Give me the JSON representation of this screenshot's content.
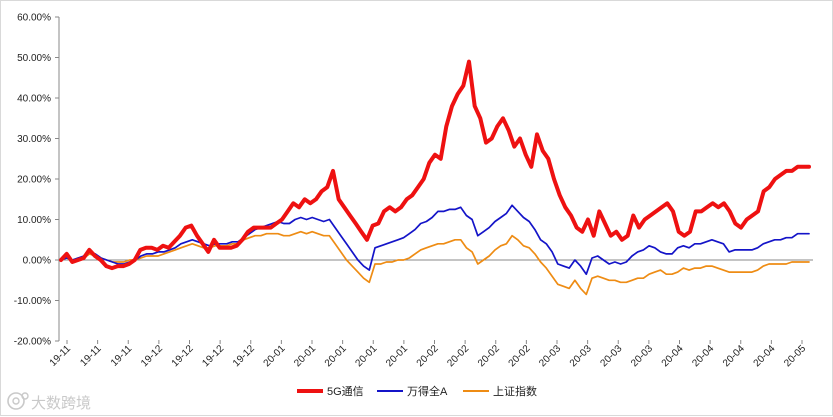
{
  "chart_data": {
    "type": "line",
    "title": "",
    "xlabel": "",
    "ylabel": "",
    "ylim": [
      -20,
      60
    ],
    "y_ticks": [
      "60.00%",
      "50.00%",
      "40.00%",
      "30.00%",
      "20.00%",
      "10.00%",
      "0.00%",
      "-10.00%",
      "-20.00%"
    ],
    "y_tick_values": [
      60,
      50,
      40,
      30,
      20,
      10,
      0,
      -10,
      -20
    ],
    "x_tick_labels": [
      "19-11",
      "19-11",
      "19-11",
      "19-12",
      "19-12",
      "19-12",
      "19-12",
      "20-01",
      "20-01",
      "20-01",
      "20-01",
      "20-01",
      "20-02",
      "20-02",
      "20-02",
      "20-02",
      "20-03",
      "20-03",
      "20-03",
      "20-03",
      "20-04",
      "20-04",
      "20-04",
      "20-04",
      "20-05"
    ],
    "grid": false,
    "legend_position": "bottom",
    "series": [
      {
        "name": "5G通信",
        "color": "#ee1111",
        "values": [
          0,
          1.5,
          -0.5,
          0,
          0.5,
          2.5,
          1,
          0,
          -1.5,
          -2,
          -1.5,
          -1.5,
          -1,
          0,
          2.5,
          3,
          3,
          2.5,
          3.5,
          3,
          4.5,
          6,
          8,
          8.5,
          6,
          4,
          2,
          5,
          3,
          3,
          3,
          3.5,
          5,
          7,
          8,
          8,
          8,
          8,
          9,
          10,
          12,
          14,
          13,
          15,
          14,
          15,
          17,
          18,
          22,
          15,
          13,
          11,
          9,
          7,
          5,
          8.5,
          9,
          12,
          13,
          12,
          13,
          15,
          16,
          18,
          20,
          24,
          26,
          25,
          33,
          38,
          41,
          43,
          49,
          38,
          35,
          29,
          30,
          33,
          35,
          32,
          28,
          30,
          26,
          23,
          31,
          27,
          25,
          20,
          16,
          13,
          11,
          8,
          7,
          10,
          6,
          12,
          9,
          6,
          7,
          5,
          6,
          11,
          8,
          10,
          11,
          12,
          13,
          14,
          12,
          7,
          6,
          7,
          12,
          12,
          13,
          14,
          13,
          14,
          12,
          9,
          8,
          10,
          11,
          12,
          17,
          18,
          20,
          21,
          22,
          22,
          23,
          23,
          23
        ]
      },
      {
        "name": "万得全A",
        "color": "#1414c8",
        "values": [
          0,
          0.5,
          0,
          0.5,
          1,
          2,
          1.5,
          0.5,
          0,
          -0.5,
          -1,
          -1,
          -0.5,
          0,
          1,
          1.5,
          1.5,
          2,
          2,
          2.5,
          3,
          4,
          4.5,
          5,
          4.5,
          4,
          3.5,
          4,
          4,
          4,
          4.5,
          4.5,
          5.5,
          6.5,
          7.5,
          8,
          8.5,
          9,
          9.5,
          9,
          9,
          10,
          10.5,
          10,
          10.5,
          10,
          9.5,
          10,
          8,
          6,
          4,
          2,
          0,
          -1.5,
          -2.5,
          3,
          3.5,
          4,
          4.5,
          5,
          5.5,
          6.5,
          7.5,
          9,
          9.5,
          10.5,
          12,
          12,
          12.5,
          12.5,
          13,
          11,
          10,
          6,
          7,
          8,
          9.5,
          10.5,
          11.5,
          13.5,
          12,
          10.5,
          9.5,
          7.5,
          5,
          4,
          2,
          -1,
          -1.5,
          -2,
          0,
          -1.5,
          -3.5,
          0.5,
          1,
          0,
          -1,
          -0.5,
          -1,
          -0.5,
          1,
          2,
          2.5,
          3.5,
          3,
          2,
          1.5,
          1.5,
          3,
          3.5,
          3,
          4,
          4,
          4.5,
          5,
          4.5,
          4,
          2,
          2.5,
          2.5,
          2.5,
          2.5,
          3,
          4,
          4.5,
          5,
          5,
          5.5,
          5.5,
          6.5,
          6.5,
          6.5
        ]
      },
      {
        "name": "上证指数",
        "color": "#ee8c14",
        "values": [
          0,
          0.5,
          0,
          0.5,
          0.5,
          1.5,
          1,
          0.5,
          0,
          -0.5,
          -0.5,
          -0.5,
          0,
          0,
          0.5,
          1,
          1,
          1,
          1.5,
          2,
          2.5,
          3,
          3.5,
          4,
          3.5,
          3,
          3,
          3.5,
          3.5,
          3.5,
          4,
          4,
          5,
          5.5,
          6,
          6,
          6.5,
          6.5,
          6.5,
          6,
          6,
          6.5,
          7,
          6.5,
          7,
          6.5,
          6,
          6,
          4,
          2,
          0,
          -1.5,
          -3,
          -4.5,
          -5.5,
          -1,
          -1,
          -0.5,
          -0.5,
          0,
          0,
          0.5,
          1.5,
          2.5,
          3,
          3.5,
          4,
          4,
          4.5,
          5,
          5,
          3,
          2,
          -1,
          0,
          1,
          2.5,
          3.5,
          4,
          6,
          5,
          3.5,
          3,
          1.5,
          -0.5,
          -2,
          -4,
          -6,
          -6.5,
          -7,
          -5,
          -7,
          -8.5,
          -4.5,
          -4,
          -4.5,
          -5,
          -5,
          -5.5,
          -5.5,
          -5,
          -4.5,
          -4.5,
          -3.5,
          -3,
          -2.5,
          -3.5,
          -3.5,
          -3,
          -2,
          -2.5,
          -2,
          -2,
          -1.5,
          -1.5,
          -2,
          -2.5,
          -3,
          -3,
          -3,
          -3,
          -3,
          -2.5,
          -1.5,
          -1,
          -1,
          -1,
          -1,
          -0.5,
          -0.5,
          -0.5,
          -0.5
        ]
      }
    ]
  },
  "watermark": {
    "text": "大数跨境"
  }
}
